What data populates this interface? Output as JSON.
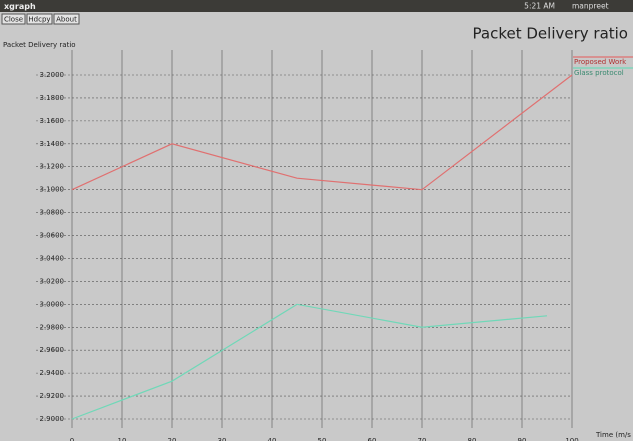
{
  "window": {
    "title": "xgraph",
    "time": "5:21 AM",
    "user": "manpreet",
    "buttons": [
      "Close",
      "Hdcpy",
      "About"
    ]
  },
  "chart_data": {
    "type": "line",
    "title": "Packet Delivery ratio",
    "y_label": "Packet Delivery ratio",
    "x_label": "Time (m/s",
    "x": [
      0,
      20,
      45,
      70,
      100
    ],
    "series": [
      {
        "name": "Proposed Work",
        "color": "#e07070",
        "values": [
          3.1,
          3.14,
          3.11,
          3.1,
          3.2
        ],
        "x": [
          0,
          20,
          45,
          70,
          100
        ]
      },
      {
        "name": "Glass protocol",
        "color": "#70d8b8",
        "values": [
          2.9,
          2.933,
          3.0,
          2.98,
          2.99
        ],
        "x": [
          0,
          20,
          45,
          70,
          95
        ]
      }
    ],
    "xlim": [
      0,
      100
    ],
    "xticks": [
      0,
      10,
      20,
      30,
      40,
      50,
      60,
      70,
      80,
      90,
      100
    ],
    "ylim": [
      2.9,
      3.2
    ],
    "yticks": [
      {
        "value": 2.9,
        "label": "2.9000"
      },
      {
        "value": 2.92,
        "label": "2.9200"
      },
      {
        "value": 2.94,
        "label": "2.9400"
      },
      {
        "value": 2.96,
        "label": "2.9600"
      },
      {
        "value": 2.98,
        "label": "2.9800"
      },
      {
        "value": 3.0,
        "label": "3.0000"
      },
      {
        "value": 3.02,
        "label": "3.0200"
      },
      {
        "value": 3.04,
        "label": "3.0400"
      },
      {
        "value": 3.06,
        "label": "3.0600"
      },
      {
        "value": 3.08,
        "label": "3.0800"
      },
      {
        "value": 3.1,
        "label": "3.1000"
      },
      {
        "value": 3.12,
        "label": "3.1200"
      },
      {
        "value": 3.14,
        "label": "3.1400"
      },
      {
        "value": 3.16,
        "label": "3.1600"
      },
      {
        "value": 3.18,
        "label": "3.1800"
      },
      {
        "value": 3.2,
        "label": "3.2000"
      }
    ],
    "grid": true
  }
}
